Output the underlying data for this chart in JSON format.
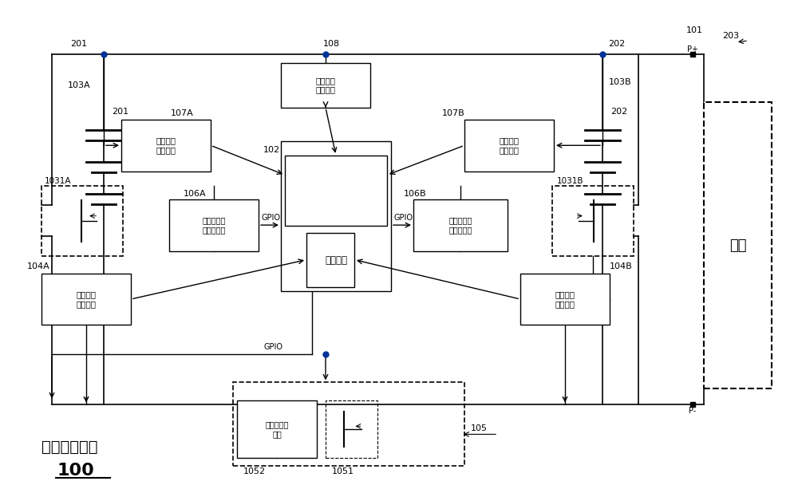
{
  "bg_color": "#ffffff",
  "line_color": "#000000",
  "blue_dot_color": "#003399",
  "title_text": "电池管理电路",
  "title_number": "100",
  "load_text": "负载",
  "label_101": "101",
  "label_201": "201",
  "label_202": "202",
  "label_203": "203",
  "label_102": "102",
  "label_103A": "103A",
  "label_103B": "103B",
  "label_104A": "104A",
  "label_104B": "104B",
  "label_105": "105",
  "label_106A": "106A",
  "label_106B": "106B",
  "label_107A": "107A",
  "label_107B": "107B",
  "label_108": "108",
  "label_1031A": "1031A",
  "label_1031B": "1031B",
  "label_1051": "1051",
  "label_1052": "1052",
  "box_ctrl": "控制单元",
  "box_v1": "第一电压\n侵测单元",
  "box_v2": "第二电压\n侵测单元",
  "box_v3": "第三电压\n侵测单元",
  "box_sw1": "第一开关控\n制驱动电路",
  "box_sw2": "第二开关控\n制驱动电路",
  "box_i1": "第一电流\n侵测单元",
  "box_i2": "第二电流\n侵测单元",
  "box_slow": "缓启动驱动\n电路",
  "gpio_text": "GPIO",
  "pplus": "P+",
  "pminus": "P-"
}
